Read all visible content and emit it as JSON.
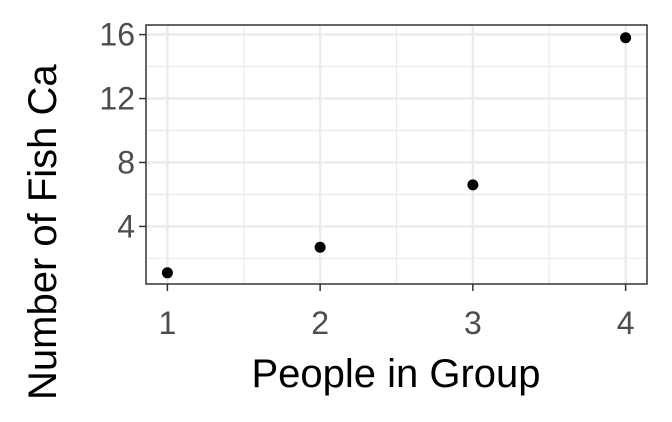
{
  "chart_data": {
    "type": "scatter",
    "title": "",
    "xlabel": "People in Group",
    "ylabel": "Number of Fish Ca",
    "x": [
      1,
      2,
      3,
      4
    ],
    "y": [
      1.1,
      2.7,
      6.6,
      15.8
    ],
    "xlim": [
      0.86,
      4.14
    ],
    "ylim": [
      0.4,
      16.6
    ],
    "x_ticks": [
      1,
      2,
      3,
      4
    ],
    "y_ticks": [
      4,
      8,
      12,
      16
    ],
    "x_tick_labels": [
      "1",
      "2",
      "3",
      "4"
    ],
    "y_tick_labels": [
      "4",
      "8",
      "12",
      "16"
    ],
    "grid": true,
    "point_color": "#000000",
    "panel_background": "#ffffff",
    "grid_color": "#ebebeb",
    "panel_border_color": "#333333"
  }
}
